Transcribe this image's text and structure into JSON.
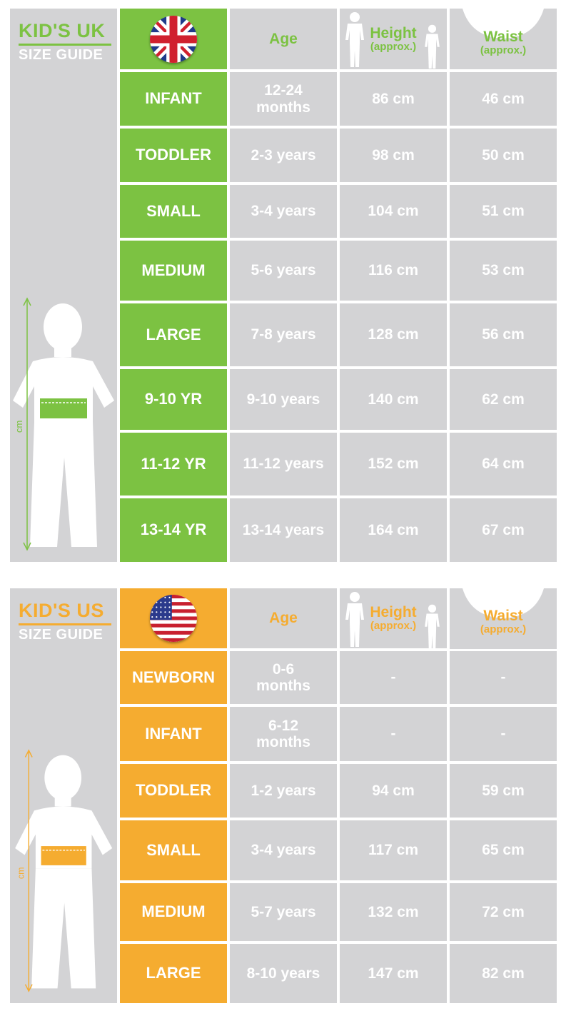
{
  "colors": {
    "uk_accent": "#7cc242",
    "us_accent": "#f5ac30",
    "cell_gray": "#d3d3d5",
    "text": "#ffffff"
  },
  "uk": {
    "title": "KID'S UK",
    "subtitle": "SIZE GUIDE",
    "flag": "uk-flag-icon",
    "side_unit": "cm",
    "headers": {
      "age": "Age",
      "height": "Height",
      "height_note": "(approx.)",
      "waist": "Waist",
      "waist_note": "(approx.)"
    },
    "rows": [
      {
        "size": "INFANT",
        "age": "12-24 months",
        "height": "86 cm",
        "waist": "46 cm"
      },
      {
        "size": "TODDLER",
        "age": "2-3 years",
        "height": "98 cm",
        "waist": "50 cm"
      },
      {
        "size": "SMALL",
        "age": "3-4 years",
        "height": "104 cm",
        "waist": "51 cm"
      },
      {
        "size": "MEDIUM",
        "age": "5-6 years",
        "height": "116 cm",
        "waist": "53 cm"
      },
      {
        "size": "LARGE",
        "age": "7-8 years",
        "height": "128 cm",
        "waist": "56 cm"
      },
      {
        "size": "9-10 YR",
        "age": "9-10 years",
        "height": "140 cm",
        "waist": "62 cm"
      },
      {
        "size": "11-12 YR",
        "age": "11-12 years",
        "height": "152 cm",
        "waist": "64 cm"
      },
      {
        "size": "13-14 YR",
        "age": "13-14 years",
        "height": "164 cm",
        "waist": "67 cm"
      }
    ]
  },
  "us": {
    "title": "KID'S US",
    "subtitle": "SIZE GUIDE",
    "flag": "us-flag-icon",
    "side_unit": "cm",
    "headers": {
      "age": "Age",
      "height": "Height",
      "height_note": "(approx.)",
      "waist": "Waist",
      "waist_note": "(approx.)"
    },
    "rows": [
      {
        "size": "NEWBORN",
        "age": "0-6 months",
        "height": "-",
        "waist": "-"
      },
      {
        "size": "INFANT",
        "age": "6-12 months",
        "height": "-",
        "waist": "-"
      },
      {
        "size": "TODDLER",
        "age": "1-2 years",
        "height": "94 cm",
        "waist": "59 cm"
      },
      {
        "size": "SMALL",
        "age": "3-4 years",
        "height": "117 cm",
        "waist": "65 cm"
      },
      {
        "size": "MEDIUM",
        "age": "5-7 years",
        "height": "132 cm",
        "waist": "72 cm"
      },
      {
        "size": "LARGE",
        "age": "8-10 years",
        "height": "147 cm",
        "waist": "82 cm"
      }
    ]
  }
}
